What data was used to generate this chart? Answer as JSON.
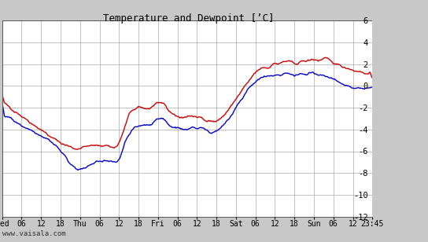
{
  "title": "Temperature and Dewpoint [’C]",
  "ylim": [
    -12,
    6
  ],
  "yticks": [
    -12,
    -10,
    -8,
    -6,
    -4,
    -2,
    0,
    2,
    4,
    6
  ],
  "x_tick_labels": [
    "Wed",
    "06",
    "12",
    "18",
    "Thu",
    "06",
    "12",
    "18",
    "Fri",
    "06",
    "12",
    "18",
    "Sat",
    "06",
    "12",
    "18",
    "Sun",
    "06",
    "12",
    "23:45"
  ],
  "watermark": "www.vaisala.com",
  "bg_color": "#c8c8c8",
  "plot_bg_color": "#ffffff",
  "temp_color": "#cc0000",
  "dew_color": "#0000cc",
  "line_width": 1.0,
  "grid_color": "#aaaaaa",
  "title_fontsize": 9,
  "tick_fontsize": 7,
  "n_points": 480
}
